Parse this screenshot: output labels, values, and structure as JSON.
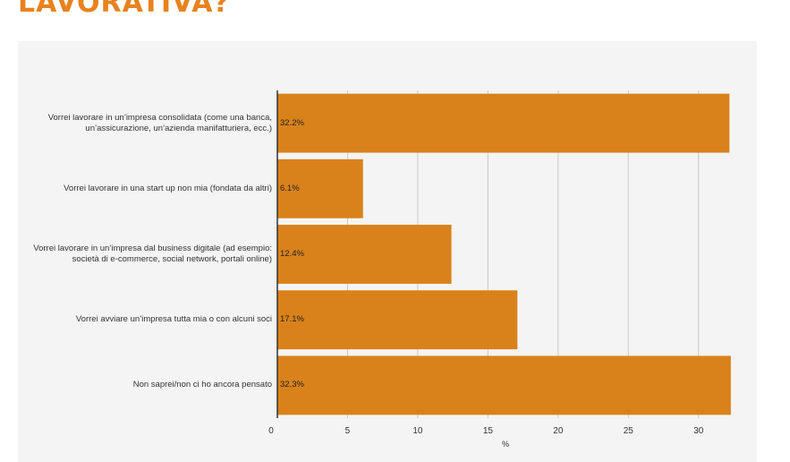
{
  "page": {
    "heading": "LAVORATIVA?"
  },
  "chart_data": {
    "type": "bar",
    "orientation": "horizontal",
    "categories": [
      "Vorrei lavorare in un’impresa consolidata (come una banca, un’assicurazione, un’azienda manifatturiera, ecc.)",
      "Vorrei lavorare in una start up non mia (fondata da altri)",
      "Vorrei lavorare in un’impresa dal business digitale (ad esempio: società di e-commerce, social network, portali online)",
      "Vorrei avviare un’impresa tutta mia o con alcuni soci",
      "Non saprei/non ci ho ancora pensato"
    ],
    "values": [
      32.2,
      6.1,
      12.4,
      17.1,
      32.3
    ],
    "value_labels": [
      "32.2%",
      "6.1%",
      "12.4%",
      "17.1%",
      "32.3%"
    ],
    "xticks": [
      "0",
      "5",
      "10",
      "15",
      "20",
      "25",
      "30"
    ],
    "xlabel": "%",
    "xlim": [
      0,
      32.5
    ],
    "grid": true,
    "bar_color": "#d9821b"
  }
}
